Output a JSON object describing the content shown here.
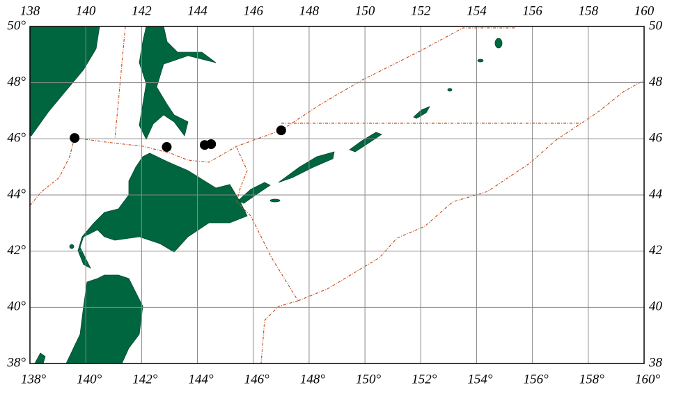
{
  "chart_data": {
    "type": "scatter",
    "x": [
      139.6,
      142.9,
      144.26,
      144.49,
      147.0
    ],
    "values": [
      46.03,
      45.71,
      45.78,
      45.81,
      46.3
    ],
    "color": "#000000",
    "xlim": [
      138,
      160
    ],
    "ylim": [
      38,
      50
    ],
    "xticks": [
      {
        "value": 138,
        "label": "138°"
      },
      {
        "value": 140,
        "label": "140°"
      },
      {
        "value": 142,
        "label": "142°"
      },
      {
        "value": 144,
        "label": "144°"
      },
      {
        "value": 146,
        "label": "146°"
      },
      {
        "value": 148,
        "label": "148°"
      },
      {
        "value": 150,
        "label": "150°"
      },
      {
        "value": 152,
        "label": "152°"
      },
      {
        "value": 154,
        "label": "154°"
      },
      {
        "value": 156,
        "label": "156°"
      },
      {
        "value": 158,
        "label": "158°"
      },
      {
        "value": 160,
        "label": "160°"
      }
    ],
    "yticks": [
      {
        "value": 38,
        "label": "38°"
      },
      {
        "value": 40,
        "label": "40°"
      },
      {
        "value": 42,
        "label": "42°"
      },
      {
        "value": 44,
        "label": "44°"
      },
      {
        "value": 46,
        "label": "46°"
      },
      {
        "value": 48,
        "label": "48°"
      },
      {
        "value": 50,
        "label": "50°"
      }
    ],
    "grid": true
  }
}
